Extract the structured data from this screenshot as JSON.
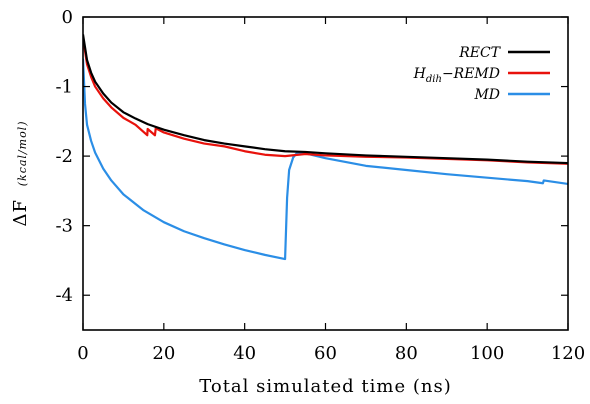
{
  "chart_data": {
    "type": "line",
    "xlabel": "Total simulated time (ns)",
    "ylabel_main": "ΔF",
    "ylabel_unit": "(kcal/mol)",
    "xlim": [
      0,
      120
    ],
    "ylim": [
      -4.5,
      0
    ],
    "x_ticks": [
      0,
      20,
      40,
      60,
      80,
      100,
      120
    ],
    "y_ticks": [
      0,
      -1,
      -2,
      -3,
      -4
    ],
    "grid": false,
    "legend_position": "top-right",
    "series": [
      {
        "name": "RECT",
        "label_base": "RECT",
        "label_sub": "",
        "label_tail": "",
        "color": "#000000",
        "x": [
          0,
          1,
          2,
          3,
          5,
          7,
          10,
          13,
          16,
          20,
          25,
          30,
          35,
          40,
          45,
          50,
          55,
          60,
          70,
          80,
          90,
          100,
          110,
          120
        ],
        "y": [
          -0.25,
          -0.62,
          -0.8,
          -0.93,
          -1.1,
          -1.23,
          -1.37,
          -1.46,
          -1.54,
          -1.62,
          -1.7,
          -1.77,
          -1.82,
          -1.86,
          -1.9,
          -1.93,
          -1.94,
          -1.96,
          -1.99,
          -2.01,
          -2.03,
          -2.05,
          -2.08,
          -2.1
        ]
      },
      {
        "name": "Hdih-REMD",
        "label_base": "H",
        "label_sub": "dih",
        "label_tail": "−REMD",
        "color": "#e8120c",
        "x": [
          0,
          1,
          2,
          3,
          5,
          7,
          10,
          13,
          15.9,
          16,
          17.8,
          18,
          20,
          25,
          30,
          35,
          40,
          45,
          50,
          55,
          60,
          70,
          80,
          90,
          100,
          110,
          120
        ],
        "y": [
          -0.3,
          -0.68,
          -0.86,
          -1.0,
          -1.17,
          -1.3,
          -1.45,
          -1.55,
          -1.7,
          -1.61,
          -1.7,
          -1.6,
          -1.66,
          -1.75,
          -1.82,
          -1.86,
          -1.93,
          -1.98,
          -2.0,
          -1.97,
          -1.99,
          -2.01,
          -2.02,
          -2.04,
          -2.06,
          -2.09,
          -2.11
        ]
      },
      {
        "name": "MD",
        "label_base": "MD",
        "label_sub": "",
        "label_tail": "",
        "color": "#2b8ee6",
        "x": [
          0,
          0.5,
          1,
          2,
          3,
          5,
          7,
          10,
          15,
          20,
          25,
          30,
          35,
          40,
          45,
          50,
          50.5,
          51,
          52,
          53,
          55,
          60,
          70,
          80,
          90,
          100,
          110,
          113.8,
          114,
          120
        ],
        "y": [
          -0.6,
          -1.25,
          -1.55,
          -1.78,
          -1.95,
          -2.18,
          -2.35,
          -2.55,
          -2.78,
          -2.95,
          -3.08,
          -3.18,
          -3.27,
          -3.35,
          -3.42,
          -3.48,
          -2.6,
          -2.2,
          -2.02,
          -1.95,
          -1.96,
          -2.03,
          -2.14,
          -2.2,
          -2.26,
          -2.31,
          -2.36,
          -2.39,
          -2.35,
          -2.4
        ]
      }
    ]
  }
}
